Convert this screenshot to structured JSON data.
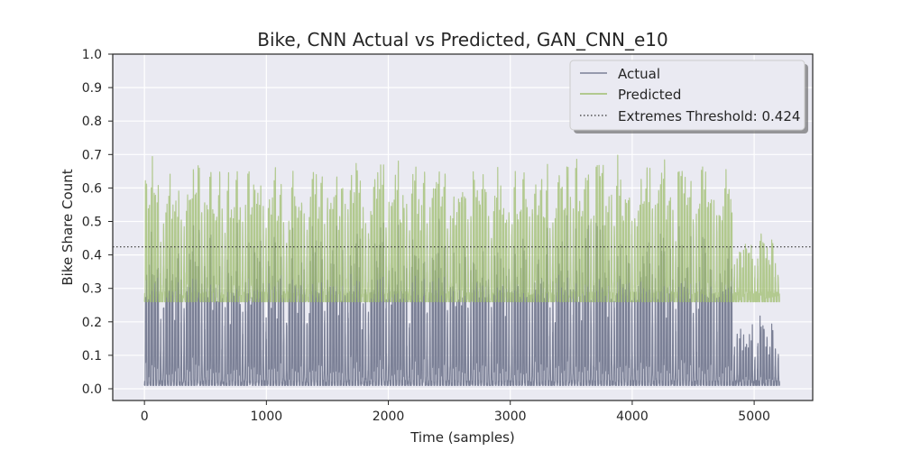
{
  "chart_data": {
    "type": "line",
    "title": "Bike, CNN Actual vs Predicted, GAN_CNN_e10",
    "xlabel": "Time (samples)",
    "ylabel": "Bike Share Count",
    "xlim": [
      -260,
      5480
    ],
    "ylim": [
      -0.035,
      1.0
    ],
    "xticks": [
      0,
      1000,
      2000,
      3000,
      4000,
      5000
    ],
    "xtick_labels": [
      "0",
      "1000",
      "2000",
      "3000",
      "4000",
      "5000"
    ],
    "yticks": [
      0.0,
      0.1,
      0.2,
      0.3,
      0.4,
      0.5,
      0.6,
      0.7,
      0.8,
      0.9,
      1.0
    ],
    "ytick_labels": [
      "0.0",
      "0.1",
      "0.2",
      "0.3",
      "0.4",
      "0.5",
      "0.6",
      "0.7",
      "0.8",
      "0.9",
      "1.0"
    ],
    "grid": true,
    "legend_placement": "top-right",
    "n_samples": 5210,
    "series": [
      {
        "name": "Actual",
        "color": "#7b8096",
        "baseline_min": 0.01,
        "typical_peak": 0.27,
        "extreme_peak": 0.68
      },
      {
        "name": "Predicted",
        "color": "#9fbe6e",
        "baseline_min": 0.26,
        "typical_peak": 0.65,
        "extreme_peak": 0.8
      }
    ],
    "threshold": {
      "label": "Extremes Threshold: 0.424",
      "value": 0.424,
      "style": "dotted",
      "color": "#333333"
    },
    "overlap_color": "#6f8a4a",
    "background_color": "#eaeaf2",
    "grid_color": "#ffffff"
  }
}
